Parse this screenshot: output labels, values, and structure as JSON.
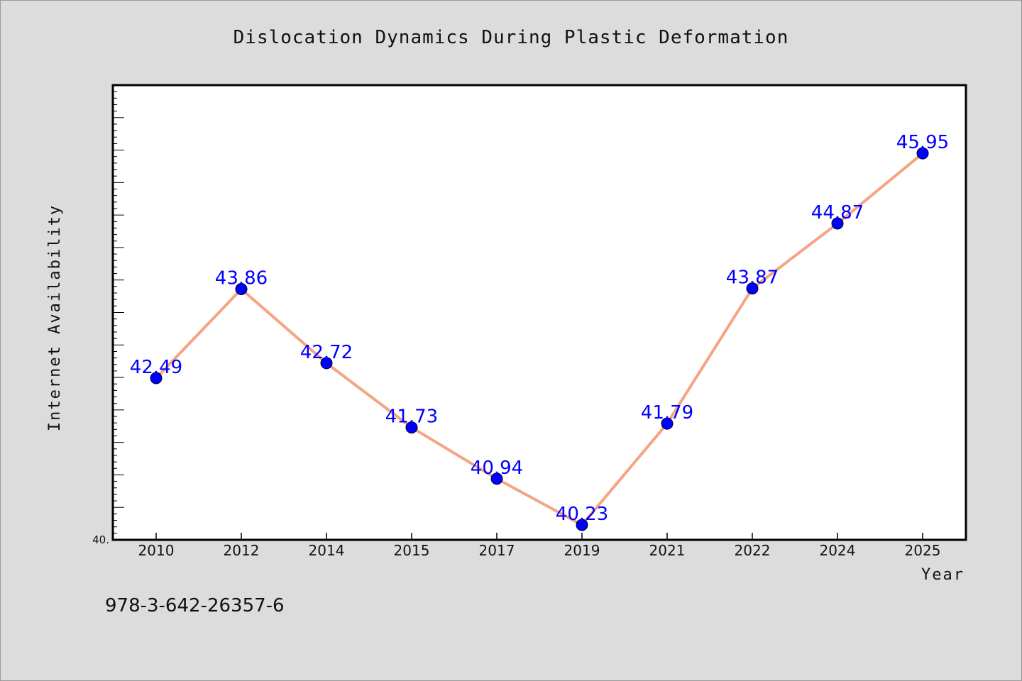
{
  "footer": {
    "isbn": "978-3-642-26357-6"
  },
  "colors": {
    "background": "#dcdcdc",
    "plot_area": "#ffffff",
    "line": "#f4a582",
    "marker": "#0000ff",
    "data_label": "#0000ff"
  },
  "chart_data": {
    "type": "line",
    "title": "Dislocation Dynamics During Plastic Deformation",
    "xlabel": "Year",
    "ylabel": "Internet Availability",
    "categories": [
      "2010",
      "2012",
      "2014",
      "2015",
      "2017",
      "2019",
      "2021",
      "2022",
      "2024",
      "2025"
    ],
    "series": [
      {
        "values": [
          42.49,
          43.86,
          42.72,
          41.73,
          40.94,
          40.23,
          41.79,
          43.87,
          44.87,
          45.95
        ],
        "labels": [
          "42.49",
          "43.86",
          "42.72",
          "41.73",
          "40.94",
          "40.23",
          "41.79",
          "43.87",
          "44.87",
          "45.95"
        ]
      }
    ],
    "ylim": [
      40.0,
      47.0
    ],
    "y_min_tick_label": "40.",
    "grid": false,
    "markers": "circle"
  }
}
